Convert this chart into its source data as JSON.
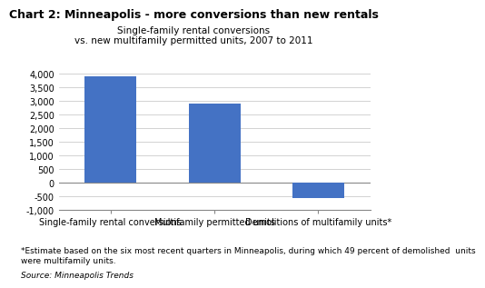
{
  "title": "Chart 2: Minneapolis - more conversions than new rentals",
  "subtitle1": "Single-family rental conversions",
  "subtitle2": "vs. new multifamily permitted units, 2007 to 2011",
  "categories": [
    "Single-family rental conversions",
    "Multifamily permitted units",
    "Demolitions of multifamily units*"
  ],
  "values": [
    3900,
    2900,
    -550
  ],
  "bar_color": "#4472C4",
  "ylim": [
    -1000,
    4000
  ],
  "yticks": [
    -1000,
    -500,
    0,
    500,
    1000,
    1500,
    2000,
    2500,
    3000,
    3500,
    4000
  ],
  "ytick_labels": [
    "-1,000",
    "-500",
    "0",
    "500",
    "1,000",
    "1,500",
    "2,000",
    "2,500",
    "3,000",
    "3,500",
    "4,000"
  ],
  "footnote_line1": "*Estimate based on the six most recent quarters in Minneapolis, during which 49 percent of demolished  units",
  "footnote_line2": "were multifamily units.",
  "source": "Source: Minneapolis Trends",
  "title_fontsize": 9,
  "subtitle_fontsize": 7.5,
  "tick_fontsize": 7,
  "xlabel_fontsize": 7,
  "footnote_fontsize": 6.5,
  "background_color": "#ffffff",
  "grid_color": "#c0c0c0"
}
